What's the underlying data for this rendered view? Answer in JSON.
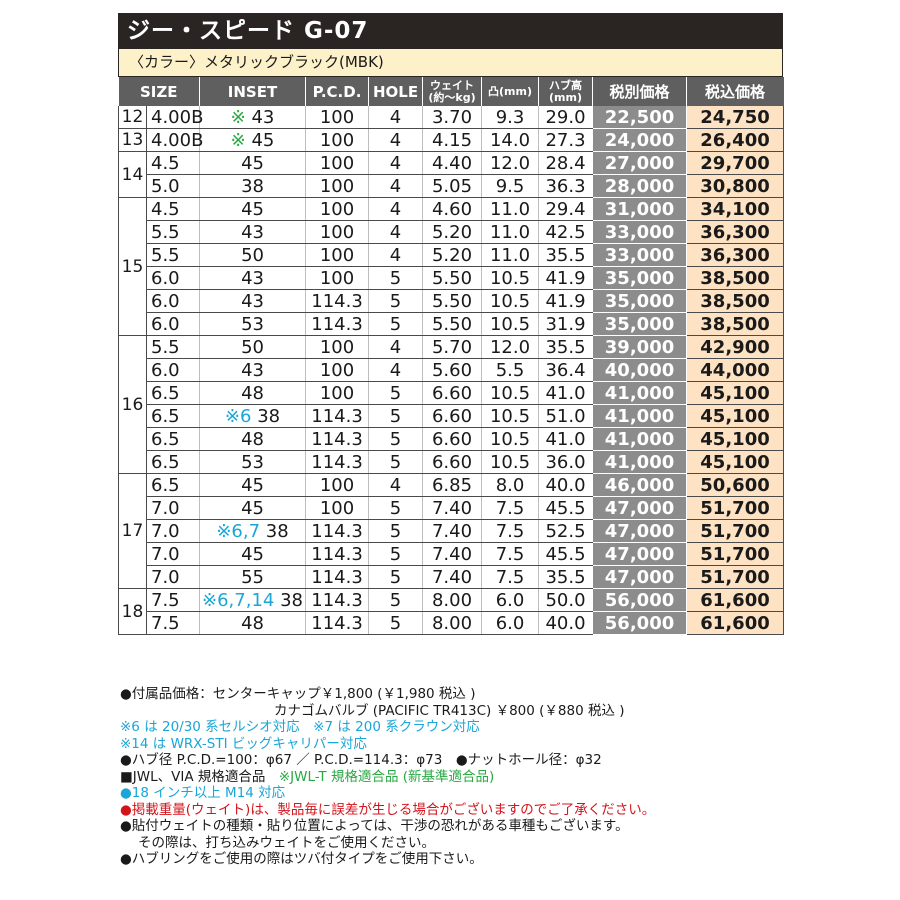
{
  "title": "ジー・スピード G-07",
  "color_label": "〈カラー〉メタリックブラック(MBK)",
  "headers": {
    "size": "SIZE",
    "inset": "INSET",
    "pcd": "P.C.D.",
    "hole": "HOLE",
    "weight": "ウェイト(約〜kg)",
    "offset": "凸(mm)",
    "hub": "ハブ高(mm)",
    "price": "税別価格",
    "tax_price": "税込価格"
  },
  "rows": [
    {
      "size": "12",
      "width": "4.00B",
      "mark": "※",
      "mark_color": "#2aa843",
      "inset": "43",
      "pcd": "100",
      "hole": "4",
      "weight": "3.70",
      "offset": "9.3",
      "hub": "29.0",
      "price": "22,500",
      "tax": "24,750"
    },
    {
      "size": "13",
      "width": "4.00B",
      "mark": "※",
      "mark_color": "#2aa843",
      "inset": "45",
      "pcd": "100",
      "hole": "4",
      "weight": "4.15",
      "offset": "14.0",
      "hub": "27.3",
      "price": "24,000",
      "tax": "26,400"
    },
    {
      "size": "14",
      "width": "4.5",
      "mark": "",
      "inset": "45",
      "pcd": "100",
      "hole": "4",
      "weight": "4.40",
      "offset": "12.0",
      "hub": "28.4",
      "price": "27,000",
      "tax": "29,700"
    },
    {
      "size": "",
      "width": "5.0",
      "mark": "",
      "inset": "38",
      "pcd": "100",
      "hole": "4",
      "weight": "5.05",
      "offset": "9.5",
      "hub": "36.3",
      "price": "28,000",
      "tax": "30,800"
    },
    {
      "size": "15",
      "width": "4.5",
      "mark": "",
      "inset": "45",
      "pcd": "100",
      "hole": "4",
      "weight": "4.60",
      "offset": "11.0",
      "hub": "29.4",
      "price": "31,000",
      "tax": "34,100"
    },
    {
      "size": "",
      "width": "5.5",
      "mark": "",
      "inset": "43",
      "pcd": "100",
      "hole": "4",
      "weight": "5.20",
      "offset": "11.0",
      "hub": "42.5",
      "price": "33,000",
      "tax": "36,300"
    },
    {
      "size": "",
      "width": "5.5",
      "mark": "",
      "inset": "50",
      "pcd": "100",
      "hole": "4",
      "weight": "5.20",
      "offset": "11.0",
      "hub": "35.5",
      "price": "33,000",
      "tax": "36,300"
    },
    {
      "size": "",
      "width": "6.0",
      "mark": "",
      "inset": "43",
      "pcd": "100",
      "hole": "5",
      "weight": "5.50",
      "offset": "10.5",
      "hub": "41.9",
      "price": "35,000",
      "tax": "38,500"
    },
    {
      "size": "",
      "width": "6.0",
      "mark": "",
      "inset": "43",
      "pcd": "114.3",
      "hole": "5",
      "weight": "5.50",
      "offset": "10.5",
      "hub": "41.9",
      "price": "35,000",
      "tax": "38,500"
    },
    {
      "size": "",
      "width": "6.0",
      "mark": "",
      "inset": "53",
      "pcd": "114.3",
      "hole": "5",
      "weight": "5.50",
      "offset": "10.5",
      "hub": "31.9",
      "price": "35,000",
      "tax": "38,500"
    },
    {
      "size": "16",
      "width": "5.5",
      "mark": "",
      "inset": "50",
      "pcd": "100",
      "hole": "4",
      "weight": "5.70",
      "offset": "12.0",
      "hub": "35.5",
      "price": "39,000",
      "tax": "42,900"
    },
    {
      "size": "",
      "width": "6.0",
      "mark": "",
      "inset": "43",
      "pcd": "100",
      "hole": "4",
      "weight": "5.60",
      "offset": "5.5",
      "hub": "36.4",
      "price": "40,000",
      "tax": "44,000"
    },
    {
      "size": "",
      "width": "6.5",
      "mark": "",
      "inset": "48",
      "pcd": "100",
      "hole": "5",
      "weight": "6.60",
      "offset": "10.5",
      "hub": "41.0",
      "price": "41,000",
      "tax": "45,100"
    },
    {
      "size": "",
      "width": "6.5",
      "mark": "※6",
      "mark_color": "#1aa6d6",
      "inset": "38",
      "pcd": "114.3",
      "hole": "5",
      "weight": "6.60",
      "offset": "10.5",
      "hub": "51.0",
      "price": "41,000",
      "tax": "45,100"
    },
    {
      "size": "",
      "width": "6.5",
      "mark": "",
      "inset": "48",
      "pcd": "114.3",
      "hole": "5",
      "weight": "6.60",
      "offset": "10.5",
      "hub": "41.0",
      "price": "41,000",
      "tax": "45,100"
    },
    {
      "size": "",
      "width": "6.5",
      "mark": "",
      "inset": "53",
      "pcd": "114.3",
      "hole": "5",
      "weight": "6.60",
      "offset": "10.5",
      "hub": "36.0",
      "price": "41,000",
      "tax": "45,100"
    },
    {
      "size": "17",
      "width": "6.5",
      "mark": "",
      "inset": "45",
      "pcd": "100",
      "hole": "4",
      "weight": "6.85",
      "offset": "8.0",
      "hub": "40.0",
      "price": "46,000",
      "tax": "50,600"
    },
    {
      "size": "",
      "width": "7.0",
      "mark": "",
      "inset": "45",
      "pcd": "100",
      "hole": "5",
      "weight": "7.40",
      "offset": "7.5",
      "hub": "45.5",
      "price": "47,000",
      "tax": "51,700"
    },
    {
      "size": "",
      "width": "7.0",
      "mark": "※6,7",
      "mark_color": "#1aa6d6",
      "inset": "38",
      "pcd": "114.3",
      "hole": "5",
      "weight": "7.40",
      "offset": "7.5",
      "hub": "52.5",
      "price": "47,000",
      "tax": "51,700"
    },
    {
      "size": "",
      "width": "7.0",
      "mark": "",
      "inset": "45",
      "pcd": "114.3",
      "hole": "5",
      "weight": "7.40",
      "offset": "7.5",
      "hub": "45.5",
      "price": "47,000",
      "tax": "51,700"
    },
    {
      "size": "",
      "width": "7.0",
      "mark": "",
      "inset": "55",
      "pcd": "114.3",
      "hole": "5",
      "weight": "7.40",
      "offset": "7.5",
      "hub": "35.5",
      "price": "47,000",
      "tax": "51,700"
    },
    {
      "size": "18",
      "width": "7.5",
      "mark": "※6,7,14",
      "mark_color": "#1aa6d6",
      "inset": "38",
      "pcd": "114.3",
      "hole": "5",
      "weight": "8.00",
      "offset": "6.0",
      "hub": "50.0",
      "price": "56,000",
      "tax": "61,600"
    },
    {
      "size": "",
      "width": "7.5",
      "mark": "",
      "inset": "48",
      "pcd": "114.3",
      "hole": "5",
      "weight": "8.00",
      "offset": "6.0",
      "hub": "40.0",
      "price": "56,000",
      "tax": "61,600"
    }
  ],
  "size_groups": [
    {
      "label": "12",
      "rows": 1
    },
    {
      "label": "13",
      "rows": 1
    },
    {
      "label": "14",
      "rows": 2
    },
    {
      "label": "15",
      "rows": 6
    },
    {
      "label": "16",
      "rows": 6
    },
    {
      "label": "17",
      "rows": 5
    },
    {
      "label": "18",
      "rows": 2
    }
  ],
  "notes": {
    "accessories_1": "●付属品価格：センターキャップ￥1,800 (￥1,980 税込 )",
    "accessories_2": "カナゴムバルブ (PACIFIC TR413C) ￥800 (￥880 税込 )",
    "note_6_7": "※6 は 20/30 系セルシオ対応　※7 は 200 系クラウン対応",
    "note_14": "※14 は WRX-STI ビッグキャリパー対応",
    "hub": "●ハブ径 P.C.D.=100：φ67 ／ P.C.D.=114.3：φ73　●ナットホール径：φ32",
    "jwl": "■JWL、VIA 規格適合品",
    "jwl_t": "※JWL-T 規格適合品 (新基準適合品)",
    "m14": "●18 インチ以上 M14 対応",
    "weight_warning": "●掲載重量(ウェイト)は、製品毎に誤差が生じる場合がございますのでご了承ください。",
    "weight_pos_1": "●貼付ウェイトの種類・貼り位置によっては、干渉の恐れがある車種もございます。",
    "weight_pos_2": "その際は、打ち込みウェイトをご使用ください。",
    "hubring": "●ハブリングをご使用の際はツバ付タイプをご使用下さい。"
  },
  "colors": {
    "title_bg": "#2a2522",
    "color_bar_bg": "#fdf1c9",
    "header_bg": "#5f5f5f",
    "price_bg": "#8c8c8c",
    "tax_bg": "#fde2c3",
    "blue_mark": "#1aa6d6",
    "green_mark": "#2aa843",
    "red_text": "#d4141c"
  }
}
